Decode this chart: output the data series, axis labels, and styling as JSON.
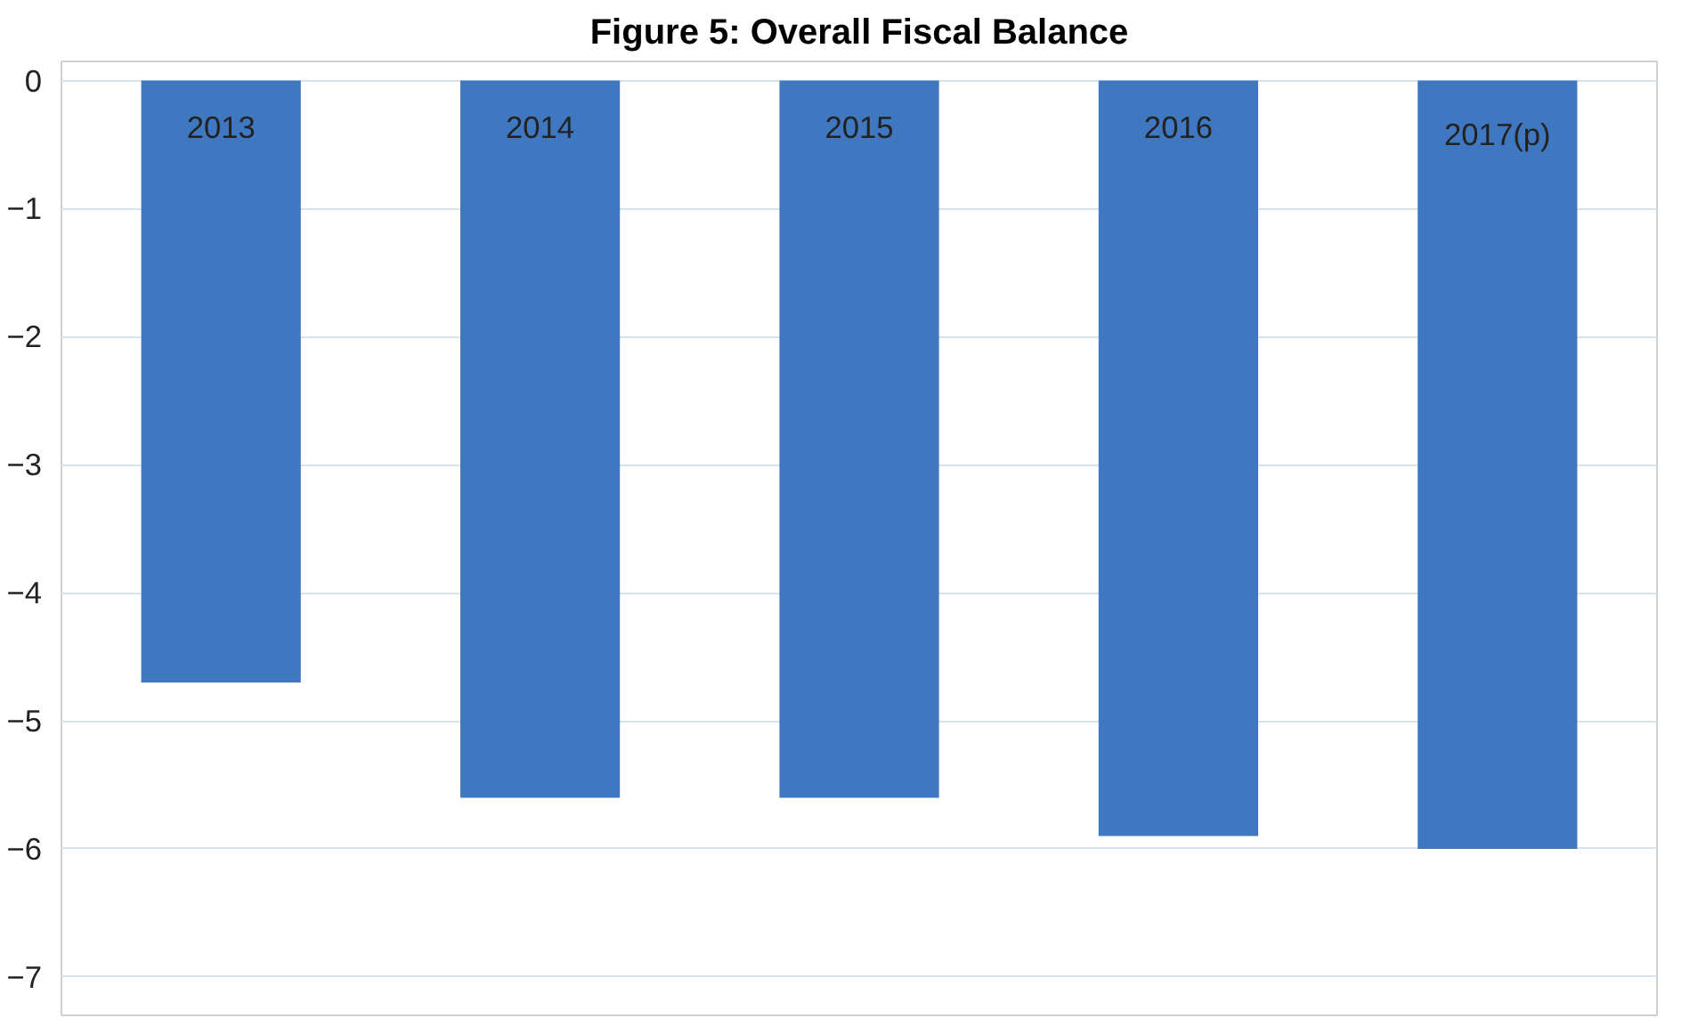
{
  "chart_data": {
    "type": "bar",
    "title": "Figure 5: Overall Fiscal Balance",
    "categories": [
      "2013",
      "2014",
      "2015",
      "2016",
      "2017(p)"
    ],
    "values": [
      -4.7,
      -5.6,
      -5.6,
      -5.9,
      -6.0
    ],
    "color": "#3f78c0",
    "ylim": [
      -7.3,
      0.15
    ],
    "yticks": [
      0,
      -1,
      -2,
      -3,
      -4,
      -5,
      -6,
      -7
    ],
    "grid": "y"
  }
}
